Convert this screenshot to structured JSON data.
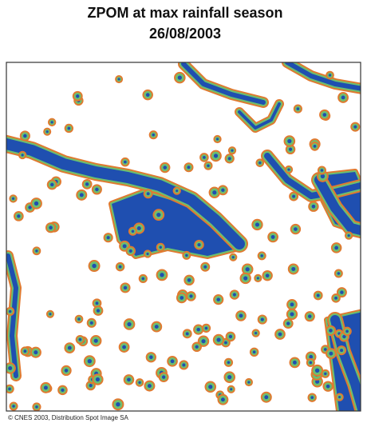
{
  "title": "ZPOM at max rainfall season",
  "date": "26/08/2003",
  "credit": "© CNES 2003, Distribution Spot Image SA"
}
